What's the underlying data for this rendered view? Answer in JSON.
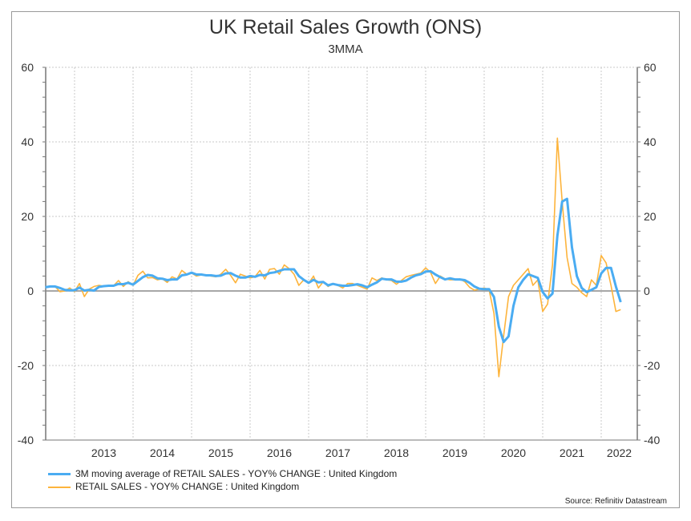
{
  "chart_data": {
    "type": "line",
    "title": "UK Retail Sales Growth (ONS)",
    "subtitle": "3MMA",
    "x_start": "2012-07",
    "frequency": "monthly",
    "x_tick_labels": [
      "2013",
      "2014",
      "2015",
      "2016",
      "2017",
      "2018",
      "2019",
      "2020",
      "2021",
      "2022"
    ],
    "ylim": [
      -40,
      60
    ],
    "y_ticks": [
      -40,
      -20,
      0,
      20,
      40,
      60
    ],
    "y_tick_labels": [
      "-40",
      "-20",
      "0",
      "20",
      "40",
      "60"
    ],
    "grid": true,
    "legend_placement": "bottom-left",
    "series": [
      {
        "name": "3M moving average of RETAIL SALES - YOY% CHANGE : United Kingdom",
        "color": "#4aacf2",
        "values": [
          1.0,
          1.2,
          1.2,
          0.8,
          0.3,
          0.2,
          0.2,
          0.9,
          0.1,
          0.3,
          0.1,
          1.1,
          1.3,
          1.4,
          1.4,
          1.9,
          1.8,
          2.2,
          1.7,
          2.7,
          3.7,
          4.3,
          4.1,
          3.4,
          3.3,
          2.9,
          3.1,
          3.1,
          4.2,
          4.4,
          4.9,
          4.4,
          4.4,
          4.2,
          4.2,
          4.0,
          4.1,
          4.7,
          4.8,
          4.1,
          3.6,
          3.6,
          4.0,
          3.8,
          4.3,
          4.2,
          4.8,
          5.0,
          5.4,
          5.8,
          5.8,
          5.8,
          4.0,
          3.0,
          2.2,
          3.0,
          2.3,
          2.4,
          1.5,
          1.9,
          1.6,
          1.4,
          1.4,
          1.6,
          1.8,
          1.5,
          1.0,
          1.7,
          2.3,
          3.3,
          3.1,
          3.1,
          2.5,
          2.5,
          2.8,
          3.6,
          4.2,
          4.5,
          5.2,
          5.3,
          4.4,
          3.7,
          3.1,
          3.4,
          3.1,
          3.1,
          2.9,
          2.2,
          1.2,
          0.6,
          0.5,
          0.5,
          -1.6,
          -9.6,
          -13.7,
          -12.2,
          -4.0,
          1.0,
          3.0,
          4.5,
          4.0,
          3.5,
          -0.3,
          -2.0,
          -0.7,
          14.8,
          24.0,
          24.7,
          11.7,
          4.0,
          0.8,
          -0.3,
          0.3,
          1.0,
          4.7,
          6.2,
          6.2,
          1.2,
          -3.0
        ]
      },
      {
        "name": "RETAIL SALES - YOY% CHANGE : United Kingdom",
        "color": "#fdb43c",
        "values": [
          1.0,
          1.3,
          1.2,
          -0.2,
          0.0,
          0.8,
          -0.2,
          2.0,
          -1.5,
          0.5,
          1.2,
          1.5,
          1.3,
          1.5,
          1.4,
          2.8,
          1.2,
          2.5,
          1.5,
          4.2,
          5.3,
          3.5,
          3.6,
          3.0,
          3.3,
          2.3,
          3.8,
          3.2,
          5.5,
          4.5,
          4.8,
          4.0,
          4.3,
          4.2,
          4.0,
          3.8,
          4.5,
          5.8,
          4.2,
          2.2,
          4.5,
          4.0,
          3.5,
          3.8,
          5.5,
          3.2,
          5.8,
          6.0,
          4.5,
          7.0,
          6.0,
          4.5,
          1.5,
          3.0,
          2.0,
          4.0,
          0.8,
          2.5,
          1.2,
          2.0,
          1.5,
          0.8,
          2.0,
          2.0,
          1.5,
          1.0,
          0.5,
          3.5,
          2.8,
          3.5,
          3.0,
          2.8,
          1.8,
          2.8,
          3.8,
          4.2,
          4.5,
          4.8,
          6.2,
          5.0,
          2.0,
          4.0,
          3.2,
          3.0,
          3.0,
          3.2,
          2.5,
          1.0,
          0.2,
          0.5,
          0.8,
          0.3,
          -6.0,
          -23.0,
          -12.0,
          -1.5,
          1.5,
          3.0,
          4.5,
          6.0,
          1.5,
          3.0,
          -5.5,
          -3.5,
          7.0,
          41.0,
          24.0,
          9.0,
          2.0,
          1.0,
          -0.5,
          -1.5,
          3.0,
          1.5,
          9.5,
          7.5,
          1.5,
          -5.5,
          -5.0
        ]
      }
    ],
    "source": "Source: Refinitiv Datastream"
  }
}
